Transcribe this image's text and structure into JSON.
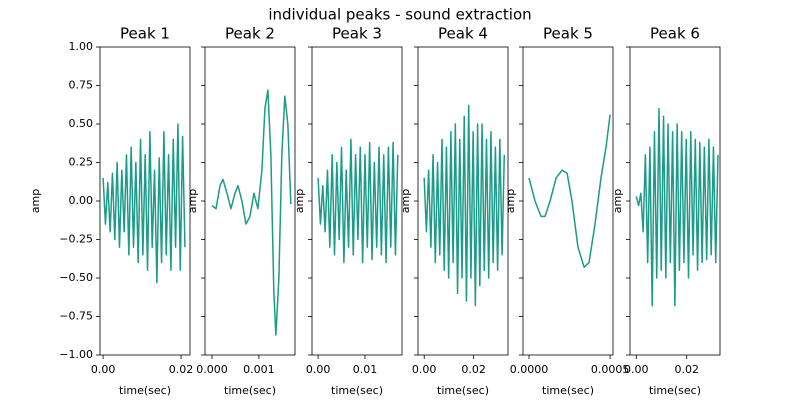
{
  "title": "individual peaks - sound extraction",
  "chart_data": [
    {
      "type": "line",
      "title": "Peak 1",
      "xlabel": "time(sec)",
      "ylabel": "amp",
      "x": [
        0,
        0.0006,
        0.0012,
        0.0018,
        0.0024,
        0.003,
        0.0036,
        0.0042,
        0.0048,
        0.0054,
        0.006,
        0.0066,
        0.0072,
        0.0078,
        0.0084,
        0.009,
        0.0096,
        0.0102,
        0.0108,
        0.0114,
        0.012,
        0.0126,
        0.0132,
        0.0138,
        0.0144,
        0.015,
        0.0156,
        0.0162,
        0.0168,
        0.0174,
        0.018,
        0.0186,
        0.0192,
        0.0198,
        0.0204,
        0.021
      ],
      "series": [
        {
          "color": "#1b9b88",
          "values": [
            0.15,
            -0.15,
            0.12,
            -0.2,
            0.18,
            -0.25,
            0.25,
            -0.3,
            0.2,
            -0.2,
            0.3,
            -0.35,
            0.35,
            -0.3,
            0.25,
            -0.4,
            0.4,
            -0.35,
            0.3,
            -0.45,
            0.45,
            -0.3,
            0.2,
            -0.53,
            0.28,
            -0.4,
            0.45,
            -0.35,
            0.3,
            -0.45,
            0.4,
            -0.3,
            0.5,
            -0.45,
            0.42,
            -0.3
          ]
        }
      ],
      "xlim": [
        -0.0008,
        0.0223
      ],
      "ylim": [
        -1,
        1
      ],
      "xticks": [
        {
          "value": 0,
          "label": "0.00"
        },
        {
          "value": 0.02,
          "label": "0.02"
        }
      ],
      "yticks": [
        {
          "value": -1,
          "label": "−1.00"
        },
        {
          "value": -0.75,
          "label": "−0.75"
        },
        {
          "value": -0.5,
          "label": "−0.50"
        },
        {
          "value": -0.25,
          "label": "−0.25"
        },
        {
          "value": 0,
          "label": "0.00"
        },
        {
          "value": 0.25,
          "label": "0.25"
        },
        {
          "value": 0.5,
          "label": "0.50"
        },
        {
          "value": 0.75,
          "label": "0.75"
        },
        {
          "value": 1,
          "label": "1.00"
        }
      ]
    },
    {
      "type": "line",
      "title": "Peak 2",
      "xlabel": "time(sec)",
      "ylabel": "amp",
      "x": [
        0,
        8.5e-05,
        0.00017,
        0.000234,
        0.000319,
        0.000404,
        0.000489,
        0.000553,
        0.000638,
        0.000723,
        0.000809,
        0.000894,
        0.000979,
        0.001064,
        0.001128,
        0.001191,
        0.001255,
        0.001319,
        0.001362,
        0.001426,
        0.001489,
        0.001553,
        0.001617,
        0.001681
      ],
      "series": [
        {
          "color": "#1b9b88",
          "values": [
            -0.03,
            -0.05,
            0.1,
            0.14,
            0.05,
            -0.05,
            0.05,
            0.1,
            0,
            -0.15,
            -0.1,
            0.05,
            -0.05,
            0.2,
            0.6,
            0.72,
            0.3,
            -0.6,
            -0.87,
            -0.5,
            0.3,
            0.68,
            0.5,
            -0.02
          ]
        }
      ],
      "xlim": [
        -0.00015,
        0.00177
      ],
      "ylim": [
        -1,
        1
      ],
      "xticks": [
        {
          "value": 0,
          "label": "0.000"
        },
        {
          "value": 0.001,
          "label": "0.001"
        }
      ]
    },
    {
      "type": "line",
      "title": "Peak 3",
      "xlabel": "time(sec)",
      "ylabel": "amp",
      "x": [
        0,
        0.0005,
        0.001,
        0.0015,
        0.002,
        0.0025,
        0.003,
        0.0035,
        0.004,
        0.0045,
        0.005,
        0.0055,
        0.006,
        0.0065,
        0.007,
        0.0075,
        0.008,
        0.0085,
        0.009,
        0.0095,
        0.01,
        0.0105,
        0.011,
        0.0115,
        0.012,
        0.0125,
        0.013,
        0.0135,
        0.014,
        0.0145,
        0.015,
        0.0155,
        0.016,
        0.0165,
        0.017
      ],
      "series": [
        {
          "color": "#1b9b88",
          "values": [
            0.15,
            -0.15,
            0.1,
            -0.2,
            0.2,
            -0.3,
            0.3,
            -0.35,
            0.25,
            -0.25,
            0.35,
            -0.4,
            0.2,
            -0.3,
            0.4,
            -0.35,
            0.3,
            -0.25,
            0.35,
            -0.4,
            0.3,
            -0.3,
            0.38,
            -0.38,
            0.25,
            -0.3,
            0.35,
            -0.35,
            0.3,
            -0.4,
            0.35,
            -0.3,
            0.38,
            -0.35,
            0.3
          ]
        }
      ],
      "xlim": [
        -0.0013,
        0.0179
      ],
      "ylim": [
        -1,
        1
      ],
      "xticks": [
        {
          "value": 0,
          "label": "0.00"
        },
        {
          "value": 0.01,
          "label": "0.01"
        }
      ]
    },
    {
      "type": "line",
      "title": "Peak 4",
      "xlabel": "time(sec)",
      "ylabel": "amp",
      "x": [
        0,
        0.0009,
        0.0018,
        0.0027,
        0.0036,
        0.0045,
        0.0054,
        0.0063,
        0.0072,
        0.0081,
        0.009,
        0.0099,
        0.0108,
        0.0117,
        0.0126,
        0.0135,
        0.0144,
        0.0153,
        0.0162,
        0.0171,
        0.018,
        0.0189,
        0.0198,
        0.0207,
        0.0216,
        0.0225,
        0.0234,
        0.0243,
        0.0252,
        0.0261,
        0.027,
        0.0279,
        0.0288,
        0.0297,
        0.0306,
        0.0315,
        0.0324
      ],
      "series": [
        {
          "color": "#1b9b88",
          "values": [
            0.15,
            -0.2,
            0.2,
            -0.3,
            0.3,
            -0.4,
            0.25,
            -0.35,
            0.4,
            -0.45,
            0.35,
            -0.5,
            0.45,
            -0.4,
            0.5,
            -0.6,
            0.4,
            -0.5,
            0.55,
            -0.65,
            0.62,
            -0.5,
            0.45,
            -0.68,
            0.5,
            -0.55,
            0.5,
            -0.45,
            0.4,
            -0.5,
            0.45,
            -0.4,
            0.35,
            -0.45,
            0.4,
            -0.35,
            0.3
          ]
        }
      ],
      "xlim": [
        -0.0025,
        0.0339
      ],
      "ylim": [
        -1,
        1
      ],
      "xticks": [
        {
          "value": 0,
          "label": "0.00"
        },
        {
          "value": 0.02,
          "label": "0.02"
        }
      ]
    },
    {
      "type": "line",
      "title": "Peak 5",
      "xlabel": "time(sec)",
      "ylabel": "amp",
      "x": [
        0,
        3.7e-05,
        7.4e-05,
        9.9e-05,
        0.00013,
        0.000167,
        0.000204,
        0.000235,
        0.000265,
        0.000302,
        0.00034,
        0.00037,
        0.000407,
        0.000444,
        0.000475,
        0.0005
      ],
      "series": [
        {
          "color": "#1b9b88",
          "values": [
            0.15,
            0,
            -0.1,
            -0.1,
            0,
            0.15,
            0.2,
            0.18,
            0,
            -0.3,
            -0.43,
            -0.4,
            -0.15,
            0.15,
            0.35,
            0.56
          ]
        }
      ],
      "xlim": [
        -3.7e-05,
        0.000518
      ],
      "ylim": [
        -1,
        1
      ],
      "xticks": [
        {
          "value": 0,
          "label": "0.0000"
        },
        {
          "value": 0.0005,
          "label": "0.0005"
        }
      ]
    },
    {
      "type": "line",
      "title": "Peak 6",
      "xlabel": "time(sec)",
      "ylabel": "amp",
      "x": [
        0,
        0.0009,
        0.0018,
        0.0027,
        0.0036,
        0.0045,
        0.0054,
        0.0063,
        0.0072,
        0.0081,
        0.009,
        0.0099,
        0.0108,
        0.0117,
        0.0126,
        0.0135,
        0.0144,
        0.0153,
        0.0162,
        0.0171,
        0.018,
        0.0189,
        0.0198,
        0.0207,
        0.0216,
        0.0225,
        0.0234,
        0.0243,
        0.0252,
        0.0261,
        0.027,
        0.0279,
        0.0288,
        0.0297,
        0.0306,
        0.0315,
        0.0324
      ],
      "series": [
        {
          "color": "#1b9b88",
          "values": [
            0.03,
            -0.03,
            0.05,
            -0.2,
            0.3,
            -0.4,
            0.35,
            -0.68,
            0.45,
            -0.5,
            0.6,
            -0.45,
            0.55,
            -0.5,
            0.5,
            -0.4,
            0.45,
            -0.68,
            0.5,
            -0.45,
            0.45,
            -0.4,
            0.4,
            -0.5,
            0.45,
            -0.35,
            0.4,
            -0.45,
            0.38,
            -0.4,
            0.35,
            -0.38,
            0.4,
            -0.35,
            0.35,
            -0.4,
            0.3
          ]
        }
      ],
      "xlim": [
        -0.0025,
        0.0332
      ],
      "ylim": [
        -1,
        1
      ],
      "xticks": [
        {
          "value": 0,
          "label": "0.00"
        },
        {
          "value": 0.02,
          "label": "0.02"
        }
      ]
    }
  ]
}
